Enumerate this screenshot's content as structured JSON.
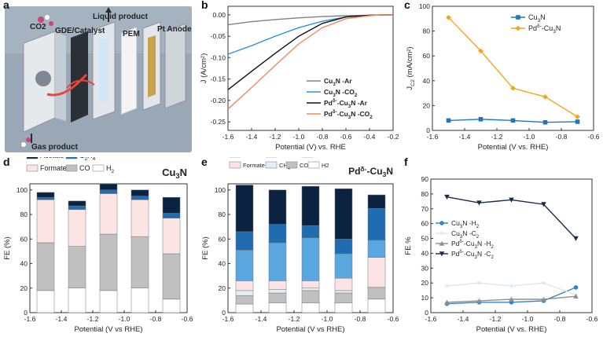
{
  "panels": {
    "a": {
      "label": "a",
      "texts": {
        "co2": "CO2",
        "gde": "GDE/Catalyst",
        "liquid": "Liquid product",
        "pem": "PEM",
        "anode": "Pt Anode",
        "gas": "Gas product"
      },
      "colors": {
        "background": "#9aa7b6",
        "frame": "#d9dde2",
        "membrane": "#f2f2f2",
        "arrow": "#e8473b",
        "co2_dot": "#c9467b"
      }
    },
    "b": {
      "label": "b"
    },
    "c": {
      "label": "c"
    },
    "d": {
      "label": "d"
    },
    "e": {
      "label": "e"
    },
    "f": {
      "label": "f"
    }
  },
  "chart_data": [
    {
      "id": "b",
      "type": "line",
      "xlabel": "Potential (V) vs. RHE",
      "ylabel": "J (A/cm²)",
      "xlim": [
        -1.6,
        -0.2
      ],
      "ylim": [
        -0.27,
        0.02
      ],
      "xticks": [
        -1.6,
        -1.4,
        -1.2,
        -1.0,
        -0.8,
        -0.6,
        -0.4,
        -0.2
      ],
      "xticklabels": [
        "-1.6",
        "-1.4",
        "-1.2",
        "-1.0",
        "-0.8",
        "-0.6",
        "-0.4",
        "-0.2"
      ],
      "yticks": [
        0.0,
        -0.05,
        -0.1,
        -0.15,
        -0.2,
        -0.25
      ],
      "yticklabels": [
        "0.00",
        "-0.05",
        "-0.10",
        "-0.15",
        "-0.20",
        "-0.25"
      ],
      "legend_position": "bottom-right",
      "series": [
        {
          "name": "Cu3N -Ar",
          "label_main": "Cu",
          "label_sub": "3",
          "label_rest": "N -Ar",
          "color": "#808080",
          "x": [
            -1.6,
            -1.4,
            -1.2,
            -1.0,
            -0.8,
            -0.6,
            -0.4,
            -0.2
          ],
          "y": [
            -0.023,
            -0.016,
            -0.011,
            -0.007,
            -0.004,
            -0.002,
            -0.001,
            0.0
          ]
        },
        {
          "name": "Cu3N -CO2",
          "label_main": "Cu",
          "label_sub": "3",
          "label_rest": "N -CO",
          "label_sub2": "2",
          "color": "#2d8fd5",
          "x": [
            -1.6,
            -1.4,
            -1.2,
            -1.0,
            -0.8,
            -0.6,
            -0.4,
            -0.2
          ],
          "y": [
            -0.092,
            -0.072,
            -0.05,
            -0.03,
            -0.015,
            -0.005,
            -0.001,
            0.0
          ]
        },
        {
          "name": "Pdδ-Cu3N -Ar",
          "label_main": "Pd",
          "label_sup": "δ-",
          "label_mid": "-Cu",
          "label_sub": "3",
          "label_rest": "N -Ar",
          "color": "#111111",
          "x": [
            -1.6,
            -1.4,
            -1.2,
            -1.0,
            -0.8,
            -0.6,
            -0.4,
            -0.3,
            -0.2
          ],
          "y": [
            -0.175,
            -0.132,
            -0.09,
            -0.05,
            -0.02,
            -0.005,
            -0.001,
            0.0,
            0.0
          ]
        },
        {
          "name": "Pdδ-Cu3N -CO2",
          "label_main": "Pd",
          "label_sup": "δ-",
          "label_mid": "-Cu",
          "label_sub": "3",
          "label_rest": "N -CO",
          "label_sub2": "2",
          "color": "#f08a5d",
          "x": [
            -1.6,
            -1.4,
            -1.2,
            -1.0,
            -0.8,
            -0.6,
            -0.4,
            -0.3,
            -0.2
          ],
          "y": [
            -0.22,
            -0.17,
            -0.118,
            -0.068,
            -0.03,
            -0.009,
            -0.002,
            0.0,
            0.0
          ]
        }
      ]
    },
    {
      "id": "c",
      "type": "line",
      "xlabel": "Potential (V vs. RHE)",
      "ylabel": "J_C2 (mA/cm²)",
      "xlim": [
        -1.6,
        -0.6
      ],
      "ylim": [
        0,
        100
      ],
      "xticks": [
        -1.6,
        -1.4,
        -1.2,
        -1.0,
        -0.8,
        -0.6
      ],
      "xticklabels": [
        "-1.6",
        "-1.4",
        "-1.2",
        "-1.0",
        "-0.8",
        "-0.6"
      ],
      "yticks": [
        0,
        20,
        40,
        60,
        80,
        100
      ],
      "yticklabels": [
        "0",
        "20",
        "40",
        "60",
        "80",
        "100"
      ],
      "legend_position": "top-right",
      "series": [
        {
          "name": "Cu3N",
          "label_main": "Cu",
          "label_sub": "3",
          "label_rest": "N",
          "color": "#1f78b4",
          "marker": "square",
          "x": [
            -1.5,
            -1.3,
            -1.1,
            -0.9,
            -0.7
          ],
          "y": [
            8,
            9,
            8,
            6.5,
            7
          ]
        },
        {
          "name": "Pdδ-Cu3N",
          "label_main": "Pd",
          "label_sup": "δ-",
          "label_mid": "-Cu",
          "label_sub": "3",
          "label_rest": "N",
          "color": "#f2a71b",
          "marker": "diamond",
          "x": [
            -1.5,
            -1.3,
            -1.1,
            -0.9,
            -0.7
          ],
          "y": [
            91,
            64,
            34,
            27,
            11
          ]
        }
      ]
    },
    {
      "id": "d",
      "type": "bar",
      "title": "Cu3N",
      "title_main": "Cu",
      "title_sub": "3",
      "title_rest": "N",
      "xlabel": "Potential (V vs RHE)",
      "ylabel": "FE (%)",
      "xlim": [
        -1.6,
        -0.6
      ],
      "ylim": [
        0,
        105
      ],
      "xticks": [
        -1.6,
        -1.4,
        -1.2,
        -1.0,
        -0.8,
        -0.6
      ],
      "xticklabels": [
        "-1.6",
        "-1.4",
        "-1.2",
        "-1.0",
        "-0.8",
        "-0.6"
      ],
      "yticks": [
        0,
        20,
        40,
        60,
        80,
        100
      ],
      "yticklabels": [
        "0",
        "20",
        "40",
        "60",
        "80",
        "100"
      ],
      "x": [
        -1.5,
        -1.3,
        -1.1,
        -0.9,
        -0.7
      ],
      "legend_position": "top",
      "series": [
        {
          "name": "H2",
          "label_main": "H",
          "label_sub": "2",
          "color": "#ffffff",
          "values": [
            18,
            20,
            18,
            20,
            11
          ]
        },
        {
          "name": "CO",
          "label_main": "CO",
          "color": "#c0c0c0",
          "values": [
            39,
            34,
            46,
            42,
            37
          ]
        },
        {
          "name": "Formate",
          "label_main": "Formate",
          "color": "#fde4e4",
          "values": [
            35,
            30,
            33,
            30,
            29
          ]
        },
        {
          "name": "C2H4",
          "label_main": "C",
          "label_sub": "2",
          "label_rest": "H",
          "label_sub2": "4",
          "color": "#1f6db0",
          "values": [
            2,
            3,
            3,
            3,
            4
          ]
        },
        {
          "name": "Acetate",
          "label_main": "Acetate",
          "color": "#0b2340",
          "values": [
            4,
            4,
            5,
            5,
            13
          ]
        }
      ]
    },
    {
      "id": "e",
      "type": "bar",
      "title": "Pdδ-Cu3N",
      "title_main": "Pd",
      "title_sup": "δ-",
      "title_mid": "-Cu",
      "title_sub": "3",
      "title_rest": "N",
      "xlabel": "Potential (V vs RHE)",
      "ylabel": "FE (%)",
      "xlim": [
        -1.6,
        -0.6
      ],
      "ylim": [
        0,
        105
      ],
      "xticks": [
        -1.6,
        -1.4,
        -1.2,
        -1.0,
        -0.8,
        -0.6
      ],
      "xticklabels": [
        "-1.6",
        "-1.4",
        "-1.2",
        "-1.0",
        "-0.8",
        "-0.6"
      ],
      "yticks": [
        0,
        20,
        40,
        60,
        80,
        100
      ],
      "yticklabels": [
        "0",
        "20",
        "40",
        "60",
        "80",
        "100"
      ],
      "x": [
        -1.5,
        -1.3,
        -1.1,
        -0.9,
        -0.7
      ],
      "legend_position": "top",
      "series": [
        {
          "name": "H2",
          "label_main": "H2",
          "color": "#ffffff",
          "values": [
            7,
            8,
            8,
            8,
            11
          ]
        },
        {
          "name": "CO",
          "label_main": "CO",
          "color": "#c0c0c0",
          "values": [
            7,
            8,
            10,
            8,
            9
          ]
        },
        {
          "name": "CH4",
          "label_main": "CH",
          "label_sub": "4",
          "color": "#e2eef8",
          "values": [
            4,
            3,
            2,
            2,
            1
          ]
        },
        {
          "name": "Formate",
          "label_main": "Formate",
          "color": "#fde4e4",
          "values": [
            8,
            7,
            6,
            10,
            24
          ]
        },
        {
          "name": "C2H4",
          "label_main": "C2H4",
          "color": "#5aa7e0",
          "values": [
            25,
            31,
            35,
            20,
            14
          ]
        },
        {
          "name": "Acetate",
          "label_main": "Acetate",
          "color": "#1f6db0",
          "values": [
            15,
            15,
            10,
            12,
            26
          ]
        },
        {
          "name": "Ethanol",
          "label_main": "Ethanol",
          "color": "#0b2340",
          "values": [
            38,
            28,
            32,
            41,
            11
          ]
        }
      ]
    },
    {
      "id": "f",
      "type": "line",
      "xlabel": "Potential (V vs. RHE)",
      "ylabel": "FE %",
      "xlim": [
        -1.6,
        -0.6
      ],
      "ylim": [
        0,
        90
      ],
      "xticks": [
        -1.6,
        -1.4,
        -1.2,
        -1.0,
        -0.8,
        -0.6
      ],
      "xticklabels": [
        "-1.6",
        "-1.4",
        "-1.2",
        "-1.0",
        "-0.8",
        "-0.6"
      ],
      "yticks": [
        0,
        10,
        20,
        30,
        40,
        50,
        60,
        70,
        80,
        90
      ],
      "yticklabels": [
        "0",
        "10",
        "20",
        "30",
        "40",
        "50",
        "60",
        "70",
        "80",
        "90"
      ],
      "legend_position": "middle-left",
      "series": [
        {
          "name": "Cu3N -H2",
          "label_main": "Cu",
          "label_sub": "3",
          "label_rest": "N -H",
          "label_sub2": "2",
          "color": "#2f86c8",
          "marker": "circle",
          "x": [
            -1.5,
            -1.3,
            -1.1,
            -0.9,
            -0.7
          ],
          "y": [
            6,
            7,
            7,
            8,
            17
          ]
        },
        {
          "name": "Cu3N -C2",
          "label_main": "Cu",
          "label_sub": "3",
          "label_rest": "N -C",
          "label_sub2": "2",
          "color": "#dfe6ee",
          "marker": "star",
          "x": [
            -1.5,
            -1.3,
            -1.1,
            -0.9,
            -0.7
          ],
          "y": [
            18,
            20,
            18,
            20,
            12
          ]
        },
        {
          "name": "Pdδ-Cu3N -H2",
          "label_main": "Pd",
          "label_sup": "δ-",
          "label_mid": "-Cu",
          "label_sub": "3",
          "label_rest": "N -H",
          "label_sub2": "2",
          "color": "#8f8f8f",
          "marker": "triangle",
          "x": [
            -1.5,
            -1.3,
            -1.1,
            -0.9,
            -0.7
          ],
          "y": [
            7,
            8,
            9,
            9,
            11
          ]
        },
        {
          "name": "Pdδ-Cu3N -C2",
          "label_main": "Pd",
          "label_sup": "δ-",
          "label_mid": "-Cu",
          "label_sub": "3",
          "label_rest": "N -C",
          "label_sub2": "2",
          "color": "#1a2b45",
          "marker": "triangle-down",
          "x": [
            -1.5,
            -1.3,
            -1.1,
            -0.9,
            -0.7
          ],
          "y": [
            78,
            74,
            76,
            73,
            50
          ]
        }
      ]
    }
  ]
}
